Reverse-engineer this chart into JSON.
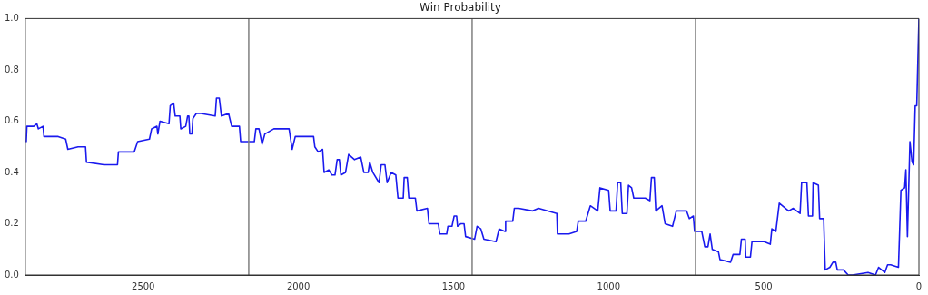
{
  "chart_data": {
    "type": "line",
    "title": "Win Probability",
    "xlim": [
      2880,
      0
    ],
    "xticks": [
      2500,
      2000,
      1500,
      1000,
      500,
      0
    ],
    "ylim": [
      0,
      1
    ],
    "yticks": [
      {
        "value": 0,
        "label": "0.0"
      },
      0.2,
      0.4,
      0.6,
      0.8,
      {
        "value": 1,
        "label": "1.0"
      }
    ],
    "grid": false,
    "marker": "none",
    "line_style": "solid",
    "ref_lines": [
      {
        "axis": "x",
        "value": 2160,
        "color": "#808080"
      },
      {
        "axis": "x",
        "value": 1440,
        "color": "#808080"
      },
      {
        "axis": "x",
        "value": 720,
        "color": "#808080"
      }
    ],
    "series": [
      {
        "color": "#1a1aee",
        "x": [
          2877,
          2875,
          2853,
          2843,
          2838,
          2823,
          2820,
          2779,
          2774,
          2750,
          2743,
          2710,
          2686,
          2683,
          2627,
          2583,
          2580,
          2529,
          2518,
          2480,
          2473,
          2456,
          2453,
          2446,
          2417,
          2413,
          2402,
          2397,
          2382,
          2379,
          2363,
          2357,
          2353,
          2350,
          2343,
          2340,
          2329,
          2314,
          2268,
          2264,
          2255,
          2248,
          2225,
          2215,
          2190,
          2186,
          2162,
          2142,
          2137,
          2127,
          2117,
          2108,
          2079,
          2030,
          2020,
          2010,
          1951,
          1947,
          1936,
          1922,
          1917,
          1902,
          1892,
          1882,
          1875,
          1868,
          1863,
          1848,
          1838,
          1819,
          1799,
          1789,
          1775,
          1770,
          1760,
          1740,
          1733,
          1721,
          1714,
          1701,
          1686,
          1679,
          1662,
          1659,
          1649,
          1644,
          1623,
          1618,
          1584,
          1579,
          1549,
          1544,
          1522,
          1518,
          1505,
          1498,
          1490,
          1487,
          1476,
          1466,
          1461,
          1432,
          1424,
          1412,
          1402,
          1363,
          1353,
          1334,
          1332,
          1309,
          1304,
          1290,
          1245,
          1226,
          1167,
          1165,
          1128,
          1103,
          1098,
          1074,
          1059,
          1035,
          1028,
          1000,
          995,
          976,
          971,
          961,
          956,
          941,
          936,
          926,
          919,
          902,
          882,
          867,
          862,
          853,
          848,
          828,
          818,
          794,
          782,
          749,
          740,
          727,
          723,
          700,
          690,
          680,
          673,
          666,
          646,
          641,
          607,
          599,
          577,
          572,
          560,
          558,
          543,
          538,
          499,
          479,
          474,
          461,
          450,
          420,
          405,
          383,
          378,
          361,
          356,
          343,
          341,
          324,
          320,
          307,
          302,
          287,
          277,
          268,
          263,
          243,
          228,
          214,
          164,
          140,
          130,
          110,
          101,
          91,
          66,
          58,
          46,
          42,
          37,
          29,
          22,
          17,
          12,
          7,
          0
        ],
        "values": [
          0.52,
          0.58,
          0.58,
          0.59,
          0.57,
          0.58,
          0.54,
          0.54,
          0.54,
          0.53,
          0.49,
          0.5,
          0.5,
          0.44,
          0.43,
          0.43,
          0.48,
          0.48,
          0.52,
          0.53,
          0.57,
          0.58,
          0.55,
          0.6,
          0.59,
          0.66,
          0.67,
          0.62,
          0.62,
          0.57,
          0.58,
          0.62,
          0.62,
          0.55,
          0.55,
          0.61,
          0.63,
          0.63,
          0.62,
          0.69,
          0.69,
          0.62,
          0.63,
          0.58,
          0.58,
          0.52,
          0.52,
          0.52,
          0.57,
          0.57,
          0.51,
          0.55,
          0.57,
          0.57,
          0.49,
          0.54,
          0.54,
          0.5,
          0.48,
          0.49,
          0.4,
          0.41,
          0.39,
          0.39,
          0.45,
          0.45,
          0.39,
          0.4,
          0.47,
          0.45,
          0.46,
          0.4,
          0.4,
          0.44,
          0.4,
          0.36,
          0.43,
          0.43,
          0.36,
          0.4,
          0.39,
          0.3,
          0.3,
          0.38,
          0.38,
          0.3,
          0.3,
          0.25,
          0.26,
          0.2,
          0.2,
          0.16,
          0.16,
          0.19,
          0.19,
          0.23,
          0.23,
          0.19,
          0.2,
          0.2,
          0.15,
          0.14,
          0.19,
          0.18,
          0.14,
          0.13,
          0.18,
          0.17,
          0.21,
          0.21,
          0.26,
          0.26,
          0.25,
          0.26,
          0.24,
          0.16,
          0.16,
          0.17,
          0.21,
          0.21,
          0.27,
          0.25,
          0.34,
          0.33,
          0.25,
          0.25,
          0.36,
          0.36,
          0.24,
          0.24,
          0.35,
          0.34,
          0.3,
          0.3,
          0.3,
          0.29,
          0.38,
          0.38,
          0.25,
          0.27,
          0.2,
          0.19,
          0.25,
          0.25,
          0.22,
          0.23,
          0.17,
          0.17,
          0.11,
          0.11,
          0.16,
          0.1,
          0.09,
          0.06,
          0.05,
          0.08,
          0.08,
          0.14,
          0.14,
          0.07,
          0.07,
          0.13,
          0.13,
          0.12,
          0.18,
          0.17,
          0.28,
          0.25,
          0.26,
          0.24,
          0.36,
          0.36,
          0.23,
          0.23,
          0.36,
          0.35,
          0.22,
          0.22,
          0.02,
          0.03,
          0.05,
          0.05,
          0.02,
          0.02,
          0,
          0,
          0.01,
          0,
          0.03,
          0.01,
          0.04,
          0.04,
          0.03,
          0.33,
          0.34,
          0.41,
          0.15,
          0.52,
          0.44,
          0.43,
          0.66,
          0.66,
          1
        ]
      }
    ]
  }
}
